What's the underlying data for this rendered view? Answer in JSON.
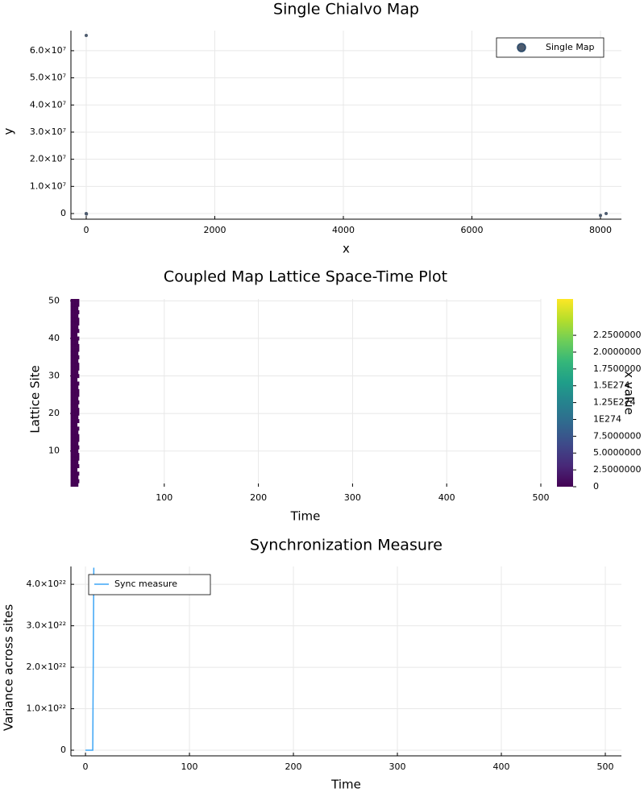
{
  "chart_data": [
    {
      "type": "scatter",
      "title": "Single Chialvo Map",
      "x_label": "x",
      "y_label": "y",
      "series": [
        {
          "name": "Single Map",
          "color": "#4d5b6e",
          "x": [
            0,
            0,
            3,
            8000,
            8088
          ],
          "values": [
            65600000,
            0,
            -200000,
            -700000,
            0
          ]
        }
      ],
      "xlim": [
        -238,
        8326
      ],
      "ylim": [
        -2080000,
        67400000
      ],
      "xticks": [
        0,
        2000,
        4000,
        6000,
        8000
      ],
      "yticks": [
        0,
        {
          "value": 10000000,
          "label": "1.0×10⁷"
        },
        {
          "value": 20000000,
          "label": "2.0×10⁷"
        },
        {
          "value": 30000000,
          "label": "3.0×10⁷"
        },
        {
          "value": 40000000,
          "label": "4.0×10⁷"
        },
        {
          "value": 50000000,
          "label": "5.0×10⁷"
        },
        {
          "value": 60000000,
          "label": "6.0×10⁷"
        }
      ],
      "grid": true,
      "legend": "top-right"
    },
    {
      "type": "heatmap",
      "title": "Coupled Map Lattice Space-Time Plot",
      "x_label": "Time",
      "y_label": "Lattice Site",
      "x": [
        1,
        2,
        3,
        4,
        5,
        6,
        7,
        8,
        9
      ],
      "y": [
        1,
        2,
        3,
        4,
        5,
        6,
        7,
        8,
        9,
        10,
        11,
        12,
        13,
        14,
        15,
        16,
        17,
        18,
        19,
        20,
        21,
        22,
        23,
        24,
        25,
        26,
        27,
        28,
        29,
        30,
        31,
        32,
        33,
        34,
        35,
        36,
        37,
        38,
        39,
        40,
        41,
        42,
        43,
        44,
        45,
        46,
        47,
        48,
        49,
        50
      ],
      "z": [
        [
          0,
          0,
          0,
          0,
          0,
          0,
          0,
          0,
          null
        ],
        [
          0,
          0,
          0,
          0,
          0,
          0,
          0,
          0,
          0
        ],
        [
          0,
          0,
          0,
          0,
          0,
          0,
          0,
          0,
          null
        ],
        [
          0,
          0,
          0,
          0,
          0,
          0,
          0,
          0,
          0
        ],
        [
          0,
          0,
          0,
          0,
          0,
          0,
          0,
          null,
          null
        ],
        [
          0,
          0,
          0,
          0,
          0,
          0,
          0,
          0,
          0
        ],
        [
          0,
          0,
          0,
          0,
          0,
          0,
          0,
          0,
          null
        ],
        [
          0,
          0,
          0,
          0,
          0,
          0,
          0,
          0,
          0
        ],
        [
          0,
          0,
          0,
          0,
          0,
          0,
          0,
          0,
          0
        ],
        [
          0,
          0,
          0,
          0,
          0,
          0,
          0,
          0,
          null
        ],
        [
          0,
          0,
          0,
          0,
          0,
          0,
          0,
          0,
          0
        ],
        [
          0,
          0,
          0,
          0,
          0,
          0,
          0,
          0,
          null
        ],
        [
          0,
          0,
          0,
          0,
          0,
          0,
          0,
          0,
          0
        ],
        [
          0,
          0,
          0,
          0,
          0,
          0,
          0,
          0,
          0
        ],
        [
          0,
          0,
          0,
          0,
          0,
          0,
          0,
          0,
          null
        ],
        [
          0,
          0,
          0,
          0,
          0,
          0,
          0,
          0,
          0
        ],
        [
          0,
          0,
          0,
          0,
          0,
          0,
          0,
          null,
          null
        ],
        [
          0,
          0,
          0,
          0,
          0,
          0,
          0,
          0,
          0
        ],
        [
          0,
          0,
          0,
          0,
          0,
          0,
          0,
          0,
          null
        ],
        [
          0,
          0,
          0,
          0,
          0,
          0,
          0,
          0,
          0
        ],
        [
          0,
          0,
          0,
          0,
          0,
          0,
          0,
          0,
          0
        ],
        [
          0,
          0,
          0,
          0,
          0,
          0,
          0,
          0,
          null
        ],
        [
          0,
          0,
          0,
          0,
          0,
          0,
          0,
          0,
          0
        ],
        [
          0,
          0,
          0,
          0,
          0,
          0,
          0,
          0,
          null
        ],
        [
          0,
          0,
          0,
          0,
          0,
          0,
          0,
          0,
          0
        ],
        [
          0,
          0,
          0,
          0,
          0,
          0,
          0,
          0,
          0
        ],
        [
          0,
          0,
          0,
          0,
          0,
          0,
          0,
          0,
          null
        ],
        [
          0,
          0,
          0,
          0,
          0,
          0,
          0,
          0,
          0
        ],
        [
          0,
          0,
          0,
          0,
          0,
          0,
          0,
          null,
          null
        ],
        [
          0,
          0,
          0,
          0,
          0,
          0,
          0,
          0,
          0
        ],
        [
          0,
          0,
          0,
          0,
          0,
          0,
          0,
          0,
          null
        ],
        [
          0,
          0,
          0,
          0,
          0,
          0,
          0,
          0,
          0
        ],
        [
          0,
          0,
          0,
          0,
          0,
          0,
          0,
          0,
          0
        ],
        [
          0,
          0,
          0,
          0,
          0,
          0,
          0,
          0,
          null
        ],
        [
          0,
          0,
          0,
          0,
          0,
          0,
          0,
          0,
          0
        ],
        [
          0,
          0,
          0,
          0,
          0,
          0,
          0,
          0,
          null
        ],
        [
          0,
          0,
          0,
          0,
          0,
          0,
          0,
          0,
          0
        ],
        [
          0,
          0,
          0,
          0,
          0,
          0,
          0,
          0,
          0
        ],
        [
          0,
          0,
          0,
          0,
          0,
          0,
          0,
          0,
          null
        ],
        [
          0,
          0,
          0,
          0,
          0,
          0,
          0,
          0,
          0
        ],
        [
          0,
          0,
          0,
          0,
          0,
          0,
          0,
          null,
          null
        ],
        [
          0,
          0,
          0,
          0,
          0,
          0,
          0,
          0,
          0
        ],
        [
          0,
          0,
          0,
          0,
          0,
          0,
          0,
          0,
          null
        ],
        [
          0,
          0,
          0,
          0,
          0,
          0,
          0,
          0,
          0
        ],
        [
          0,
          0,
          0,
          0,
          0,
          0,
          0,
          0,
          0
        ],
        [
          0,
          0,
          0,
          0,
          0,
          0,
          0,
          0,
          null
        ],
        [
          0,
          0,
          0,
          0,
          0,
          0,
          0,
          0,
          0
        ],
        [
          0,
          0,
          0,
          0,
          0,
          0,
          0,
          0,
          null
        ],
        [
          0,
          0,
          0,
          0,
          0,
          0,
          0,
          0,
          0
        ],
        [
          0,
          0,
          0,
          0,
          0,
          0,
          0,
          0,
          0
        ]
      ],
      "xlim": [
        0,
        500
      ],
      "ylim": [
        0.5,
        50.5
      ],
      "xticks": [
        100,
        200,
        300,
        400,
        500
      ],
      "yticks": [
        10,
        20,
        30,
        40,
        50
      ],
      "colormap": "viridis",
      "colorbar_label": "x value",
      "clim": [
        0,
        2.79e+274
      ],
      "cticks": [
        0,
        {
          "value": 2.5e+273,
          "label": "2.5000000"
        },
        {
          "value": 5e+273,
          "label": "5.0000000"
        },
        {
          "value": 7.5e+273,
          "label": "7.5000000"
        },
        {
          "value": 1e+274,
          "label": "1E274"
        },
        {
          "value": 1.25e+274,
          "label": "1.25E274"
        },
        {
          "value": 1.5e+274,
          "label": "1.5E274"
        },
        {
          "value": 1.75e+274,
          "label": "1.7500000"
        },
        {
          "value": 2e+274,
          "label": "2.0000000"
        },
        {
          "value": 2.25e+274,
          "label": "2.2500000"
        }
      ],
      "grid": true
    },
    {
      "type": "line",
      "title": "Synchronization Measure",
      "x_label": "Time",
      "y_label": "Variance across sites",
      "x": [
        0,
        1,
        2,
        3,
        4,
        5,
        6,
        7,
        8
      ],
      "series": [
        {
          "name": "Sync measure",
          "color": "#3da5f5",
          "values": [
            0,
            0,
            0,
            0,
            0,
            0,
            0,
            0,
            4.4e+22
          ]
        }
      ],
      "xlim": [
        -14,
        515.5
      ],
      "ylim": [
        -1.36e+21,
        4.43e+22
      ],
      "xticks": [
        0,
        100,
        200,
        300,
        400,
        500
      ],
      "yticks": [
        0,
        {
          "value": 1e+22,
          "label": "1.0×10²²"
        },
        {
          "value": 2e+22,
          "label": "2.0×10²²"
        },
        {
          "value": 3e+22,
          "label": "3.0×10²²"
        },
        {
          "value": 4e+22,
          "label": "4.0×10²²"
        }
      ],
      "grid": true,
      "legend": "top-left"
    }
  ]
}
